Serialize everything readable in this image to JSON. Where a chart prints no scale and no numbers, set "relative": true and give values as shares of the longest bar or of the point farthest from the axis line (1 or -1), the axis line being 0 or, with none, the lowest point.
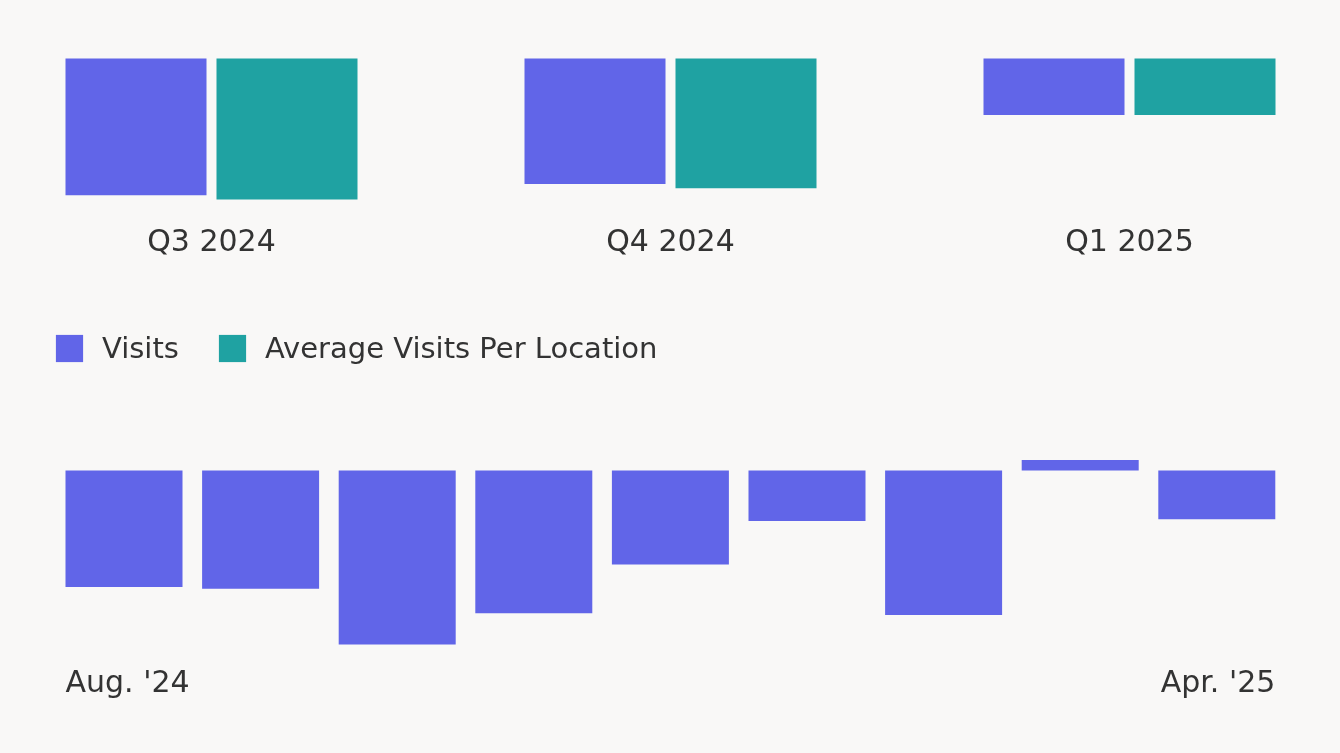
{
  "chart_data": [
    {
      "type": "bar",
      "relative": true,
      "legend": "bottom",
      "categories": [
        "Q3 2024",
        "Q4 2024",
        "Q1 2025"
      ],
      "series": [
        {
          "name": "Visits",
          "color": "#6165e8",
          "values": [
            -0.97,
            -0.89,
            -0.4
          ]
        },
        {
          "name": "Average Visits Per Location",
          "color": "#1fa2a2",
          "values": [
            -1,
            -0.92,
            -0.4
          ]
        }
      ]
    },
    {
      "type": "bar",
      "relative": true,
      "categories": [
        "Aug. '24",
        null,
        null,
        null,
        null,
        null,
        null,
        null,
        "Apr. '25"
      ],
      "color": "#6165e8",
      "values": [
        -0.67,
        -0.68,
        -1,
        -0.82,
        -0.54,
        -0.29,
        -0.83,
        0.06,
        -0.28
      ]
    }
  ]
}
